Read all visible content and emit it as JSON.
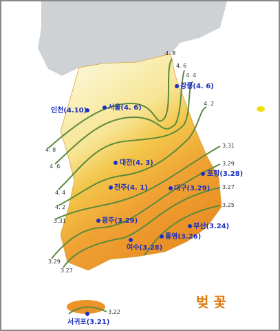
{
  "title": "벚 꽃",
  "cities": [
    "강릉(4. 6)",
    "서울(4. 6)",
    "인천(4.10)",
    "대전(4. 3)",
    "포항(3.28)",
    "전주(4. 1)",
    "대구(3.29)",
    "광주(3.29)",
    "부산(3.24)",
    "통영(3.26)",
    "여수(3.28)",
    "서귀포(3.21)"
  ],
  "isoline_labels": {
    "top": [
      "4. 8",
      "4. 6",
      "4. 4",
      "4. 2"
    ],
    "right": [
      "3.31",
      "3.29",
      "3.27",
      "3.25"
    ],
    "left": [
      "4. 8",
      "4. 6",
      "4. 4",
      "4. 2",
      "3.31",
      "3.29",
      "3.27"
    ],
    "jeju": [
      "3.22"
    ]
  }
}
